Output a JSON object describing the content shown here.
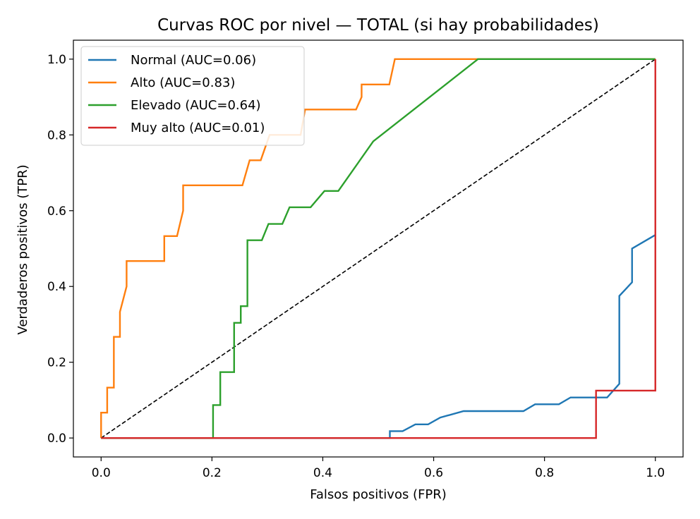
{
  "chart_data": {
    "type": "line",
    "title": "Curvas ROC por nivel — TOTAL (si hay probabilidades)",
    "xlabel": "Falsos positivos (FPR)",
    "ylabel": "Verdaderos positivos (TPR)",
    "xlim": [
      -0.05,
      1.05
    ],
    "ylim": [
      -0.05,
      1.05
    ],
    "xticks": [
      "0.0",
      "0.2",
      "0.4",
      "0.6",
      "0.8",
      "1.0"
    ],
    "yticks": [
      "0.0",
      "0.2",
      "0.4",
      "0.6",
      "0.8",
      "1.0"
    ],
    "grid": false,
    "legend_position": "top-left",
    "diagonal": {
      "x": [
        0,
        1
      ],
      "y": [
        0,
        1
      ],
      "color": "#000000",
      "style": "dashed"
    },
    "series": [
      {
        "name": "Normal (AUC=0.06)",
        "color": "#1f77b4",
        "x": [
          0,
          0.521,
          0.521,
          0.544,
          0.567,
          0.59,
          0.612,
          0.654,
          0.762,
          0.783,
          0.826,
          0.847,
          0.913,
          0.935,
          0.935,
          0.958,
          0.958,
          1.0
        ],
        "y": [
          0,
          0,
          0.018,
          0.018,
          0.036,
          0.036,
          0.054,
          0.071,
          0.071,
          0.089,
          0.089,
          0.107,
          0.107,
          0.143,
          0.375,
          0.411,
          0.5,
          0.536
        ]
      },
      {
        "name": "Alto (AUC=0.83)",
        "color": "#ff7f0e",
        "x": [
          0,
          0,
          0.011,
          0.011,
          0.023,
          0.023,
          0.034,
          0.034,
          0.046,
          0.046,
          0.114,
          0.114,
          0.137,
          0.148,
          0.148,
          0.255,
          0.268,
          0.288,
          0.304,
          0.304,
          0.36,
          0.368,
          0.46,
          0.47,
          0.47,
          0.52,
          0.53,
          0.54,
          0.68,
          1.0
        ],
        "y": [
          0,
          0.067,
          0.067,
          0.133,
          0.133,
          0.267,
          0.267,
          0.333,
          0.4,
          0.467,
          0.467,
          0.533,
          0.533,
          0.6,
          0.667,
          0.667,
          0.733,
          0.733,
          0.8,
          0.8,
          0.8,
          0.867,
          0.867,
          0.9,
          0.933,
          0.933,
          1.0,
          1.0,
          1.0,
          1.0
        ]
      },
      {
        "name": "Elevado (AUC=0.64)",
        "color": "#2ca02c",
        "x": [
          0,
          0.202,
          0.202,
          0.215,
          0.215,
          0.24,
          0.24,
          0.252,
          0.252,
          0.264,
          0.264,
          0.29,
          0.302,
          0.327,
          0.34,
          0.378,
          0.403,
          0.428,
          0.491,
          0.68,
          1.0
        ],
        "y": [
          0,
          0,
          0.087,
          0.087,
          0.174,
          0.174,
          0.304,
          0.304,
          0.348,
          0.348,
          0.522,
          0.522,
          0.565,
          0.565,
          0.609,
          0.609,
          0.652,
          0.652,
          0.783,
          1.0,
          1.0
        ]
      },
      {
        "name": "Muy alto (AUC=0.01)",
        "color": "#d62728",
        "x": [
          0,
          0.893,
          0.893,
          1.0,
          1.0
        ],
        "y": [
          0,
          0,
          0.125,
          0.125,
          1.0
        ]
      }
    ]
  }
}
